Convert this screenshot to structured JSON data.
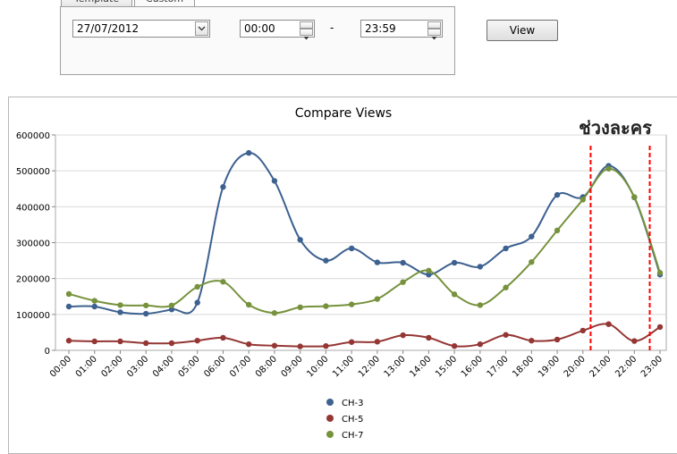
{
  "filter": {
    "tab_1": "Template",
    "tab_2": "Custom",
    "date_value": "27/07/2012",
    "time_from": "00:00",
    "range_separator": "-",
    "time_to": "23:59",
    "view_button": "View"
  },
  "chart_data": {
    "type": "line",
    "title": "Compare Views",
    "xlabel": "",
    "ylabel": "",
    "ylim": [
      0,
      600000
    ],
    "yticks": [
      0,
      100000,
      200000,
      300000,
      400000,
      500000,
      600000
    ],
    "grid": true,
    "legend_position": "bottom",
    "categories": [
      "00:00",
      "01:00",
      "02:00",
      "03:00",
      "04:00",
      "05:00",
      "06:00",
      "07:00",
      "08:00",
      "09:00",
      "10:00",
      "11:00",
      "12:00",
      "13:00",
      "14:00",
      "15:00",
      "16:00",
      "17:00",
      "18:00",
      "19:00",
      "20:00",
      "21:00",
      "22:00",
      "23:00"
    ],
    "series": [
      {
        "name": "CH-3",
        "color": "#3d6190",
        "values": [
          122000,
          122000,
          106000,
          102000,
          114000,
          133000,
          455000,
          550000,
          472000,
          308000,
          250000,
          284000,
          245000,
          244000,
          211000,
          244000,
          233000,
          284000,
          317000,
          433000,
          427000,
          514000,
          426000,
          211000
        ]
      },
      {
        "name": "CH-5",
        "color": "#943634",
        "values": [
          27000,
          25000,
          25000,
          20000,
          20000,
          27000,
          35000,
          17000,
          13000,
          11000,
          12000,
          23000,
          24000,
          42000,
          35000,
          12000,
          17000,
          43000,
          27000,
          30000,
          55000,
          73000,
          26000,
          65000
        ]
      },
      {
        "name": "CH-7",
        "color": "#76923c",
        "values": [
          157000,
          138000,
          126000,
          125000,
          125000,
          177000,
          191000,
          127000,
          104000,
          120000,
          123000,
          128000,
          143000,
          190000,
          222000,
          156000,
          126000,
          175000,
          246000,
          334000,
          420000,
          506000,
          427000,
          216000
        ]
      }
    ],
    "annotation": {
      "text": "ช่วงละคร",
      "marker_positions": [
        20.3,
        22.6
      ],
      "color": "#ff0000"
    }
  }
}
